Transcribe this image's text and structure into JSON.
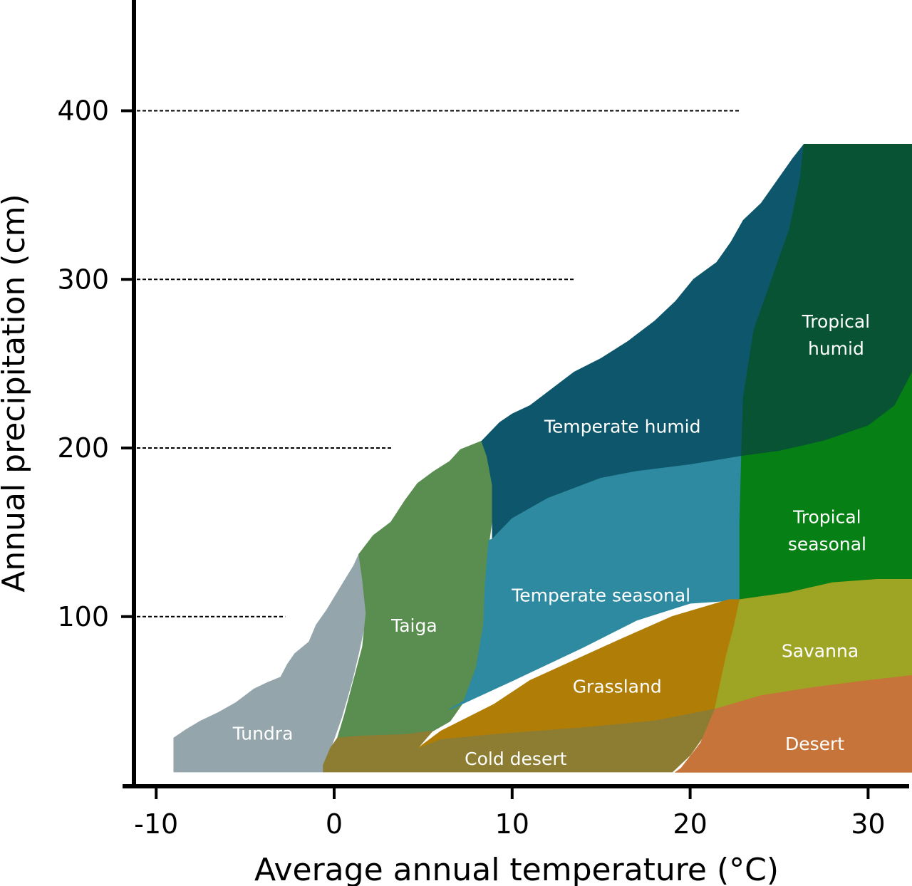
{
  "chart_data": {
    "type": "area",
    "title": "",
    "xlabel": "Average annual temperature (°C)",
    "ylabel": "Annual precipitation (cm)",
    "xlim": [
      -11,
      32
    ],
    "ylim": [
      0,
      470
    ],
    "xticks": [
      -10,
      0,
      10,
      20,
      30
    ],
    "yticks": [
      100,
      200,
      300,
      400
    ],
    "grid": "dashed horizontal guide lines at y ticks",
    "biomes": [
      {
        "name": "Tundra",
        "label": "Tundra",
        "color": "#94a6ab",
        "label_at": [
          -4,
          27
        ],
        "polygon": [
          [
            -9,
            8
          ],
          [
            -9,
            28
          ],
          [
            -8.3,
            33
          ],
          [
            -7.5,
            38
          ],
          [
            -6.5,
            43
          ],
          [
            -5.5,
            49
          ],
          [
            -4.5,
            57
          ],
          [
            -3.7,
            61
          ],
          [
            -3,
            64
          ],
          [
            -2.6,
            72
          ],
          [
            -2.2,
            78
          ],
          [
            -1.4,
            85
          ],
          [
            -1,
            95
          ],
          [
            -0.4,
            104
          ],
          [
            0.4,
            118
          ],
          [
            1.1,
            130
          ],
          [
            1.4,
            137
          ],
          [
            1.6,
            125
          ],
          [
            1.8,
            110
          ],
          [
            1.7,
            95
          ],
          [
            1.4,
            80
          ],
          [
            1,
            62
          ],
          [
            0.4,
            40
          ],
          [
            -0.2,
            22
          ],
          [
            -0.6,
            8
          ]
        ]
      },
      {
        "name": "Taiga",
        "label": "Taiga",
        "color": "#5a8e50",
        "label_at": [
          4.5,
          91
        ],
        "polygon": [
          [
            0.2,
            28
          ],
          [
            0.6,
            42
          ],
          [
            1.1,
            62
          ],
          [
            1.6,
            82
          ],
          [
            1.8,
            102
          ],
          [
            1.6,
            122
          ],
          [
            1.4,
            137
          ],
          [
            2.2,
            148
          ],
          [
            3.2,
            156
          ],
          [
            4,
            169
          ],
          [
            4.7,
            179
          ],
          [
            5.6,
            186
          ],
          [
            6.5,
            192
          ],
          [
            7.1,
            199
          ],
          [
            8.3,
            204
          ],
          [
            8.6,
            195
          ],
          [
            8.9,
            178
          ],
          [
            8.9,
            160
          ],
          [
            8.7,
            145
          ],
          [
            8.5,
            120
          ],
          [
            8.4,
            95
          ],
          [
            8,
            70
          ],
          [
            7.3,
            50
          ],
          [
            6.5,
            38
          ],
          [
            5.5,
            32
          ],
          [
            4,
            30
          ],
          [
            1.5,
            29
          ]
        ]
      },
      {
        "name": "Temperate humid",
        "label": "Temperate humid",
        "color": "#0d566b",
        "label_at": [
          16.2,
          209
        ],
        "polygon": [
          [
            8.3,
            204
          ],
          [
            9.3,
            215
          ],
          [
            10,
            220
          ],
          [
            11,
            225
          ],
          [
            12.5,
            237
          ],
          [
            13.5,
            245
          ],
          [
            15,
            253
          ],
          [
            16.5,
            263
          ],
          [
            18,
            275
          ],
          [
            19.2,
            287
          ],
          [
            20.2,
            300
          ],
          [
            21.5,
            310
          ],
          [
            22.3,
            322
          ],
          [
            23,
            335
          ],
          [
            24,
            345
          ],
          [
            25,
            360
          ],
          [
            25.8,
            372
          ],
          [
            26.4,
            380
          ],
          [
            26.2,
            360
          ],
          [
            25.6,
            330
          ],
          [
            24.6,
            300
          ],
          [
            23.6,
            270
          ],
          [
            23,
            230
          ],
          [
            22.9,
            195
          ],
          [
            20,
            190
          ],
          [
            17,
            186
          ],
          [
            15,
            182
          ],
          [
            12,
            170
          ],
          [
            10,
            158
          ],
          [
            8.9,
            146
          ],
          [
            8.9,
            160
          ],
          [
            8.9,
            178
          ],
          [
            8.6,
            195
          ]
        ]
      },
      {
        "name": "Temperate seasonal",
        "label": "Temperate seasonal",
        "color": "#2e8aa0",
        "label_at": [
          15,
          109
        ],
        "polygon": [
          [
            8.9,
            146
          ],
          [
            10,
            158
          ],
          [
            12,
            170
          ],
          [
            15,
            182
          ],
          [
            17,
            186
          ],
          [
            20,
            190
          ],
          [
            22.9,
            195
          ],
          [
            22.8,
            155
          ],
          [
            22.8,
            125
          ],
          [
            22.8,
            110
          ],
          [
            20,
            108
          ],
          [
            17,
            98
          ],
          [
            14,
            82
          ],
          [
            10,
            62
          ],
          [
            6.5,
            45
          ],
          [
            7.3,
            50
          ],
          [
            8,
            70
          ],
          [
            8.4,
            95
          ],
          [
            8.5,
            120
          ],
          [
            8.7,
            145
          ]
        ]
      },
      {
        "name": "Tropical humid",
        "label": "Tropical humid",
        "label2": "humid",
        "color": "#085333",
        "label_at": [
          28.2,
          268
        ],
        "polygon": [
          [
            26.4,
            380
          ],
          [
            32.5,
            380
          ],
          [
            32.5,
            245
          ],
          [
            31.5,
            225
          ],
          [
            30,
            213
          ],
          [
            27.5,
            204
          ],
          [
            25,
            198
          ],
          [
            22.9,
            195
          ],
          [
            23,
            230
          ],
          [
            23.6,
            270
          ],
          [
            24.6,
            300
          ],
          [
            25.6,
            330
          ],
          [
            26.2,
            360
          ]
        ]
      },
      {
        "name": "Tropical seasonal",
        "label": "Tropical seasonal",
        "label2": "seasonal",
        "color": "#067f14",
        "label_at": [
          27.7,
          152
        ],
        "polygon": [
          [
            22.9,
            195
          ],
          [
            25,
            198
          ],
          [
            27.5,
            204
          ],
          [
            30,
            213
          ],
          [
            31.5,
            225
          ],
          [
            32.5,
            245
          ],
          [
            32.5,
            122
          ],
          [
            30.5,
            122
          ],
          [
            28,
            120
          ],
          [
            25.5,
            114
          ],
          [
            22.8,
            110
          ],
          [
            22.8,
            125
          ],
          [
            22.8,
            155
          ]
        ]
      },
      {
        "name": "Grassland",
        "label": "Grassland",
        "color": "#b07e07",
        "label_at": [
          15.9,
          55
        ],
        "polygon": [
          [
            4.6,
            21
          ],
          [
            6,
            32
          ],
          [
            9,
            48
          ],
          [
            11,
            62
          ],
          [
            13.5,
            74
          ],
          [
            16,
            86
          ],
          [
            19,
            100
          ],
          [
            22.2,
            110
          ],
          [
            22.8,
            110
          ],
          [
            22.5,
            95
          ],
          [
            22,
            75
          ],
          [
            21.4,
            45
          ],
          [
            18,
            38
          ],
          [
            14,
            34
          ],
          [
            9,
            30
          ],
          [
            6,
            27
          ]
        ]
      },
      {
        "name": "Savanna",
        "label": "Savanna",
        "color": "#9ea423",
        "label_at": [
          27.3,
          76
        ],
        "polygon": [
          [
            22.8,
            110
          ],
          [
            25.5,
            114
          ],
          [
            28,
            120
          ],
          [
            30.5,
            122
          ],
          [
            32.5,
            122
          ],
          [
            32.5,
            65
          ],
          [
            30,
            62
          ],
          [
            27,
            58
          ],
          [
            24,
            53
          ],
          [
            21.4,
            45
          ],
          [
            22,
            75
          ],
          [
            22.5,
            95
          ]
        ]
      },
      {
        "name": "Cold desert",
        "label": "Cold desert",
        "color": "#8c7d33",
        "label_at": [
          10.2,
          12
        ],
        "polygon": [
          [
            -0.6,
            8
          ],
          [
            -0.6,
            12
          ],
          [
            -0.2,
            22
          ],
          [
            0.2,
            28
          ],
          [
            1.5,
            29
          ],
          [
            4,
            30
          ],
          [
            5.5,
            32
          ],
          [
            4.6,
            21
          ],
          [
            6,
            27
          ],
          [
            9,
            30
          ],
          [
            14,
            34
          ],
          [
            18,
            38
          ],
          [
            21.4,
            45
          ],
          [
            20.8,
            30
          ],
          [
            20,
            18
          ],
          [
            19,
            8
          ]
        ]
      },
      {
        "name": "Desert",
        "label": "Desert",
        "color": "#c6743a",
        "label_at": [
          27,
          21
        ],
        "polygon": [
          [
            18.2,
            0
          ],
          [
            19.5,
            10
          ],
          [
            20.6,
            25
          ],
          [
            21.4,
            45
          ],
          [
            24,
            53
          ],
          [
            27,
            58
          ],
          [
            30,
            62
          ],
          [
            32.5,
            65
          ],
          [
            32.5,
            0
          ]
        ]
      }
    ]
  }
}
